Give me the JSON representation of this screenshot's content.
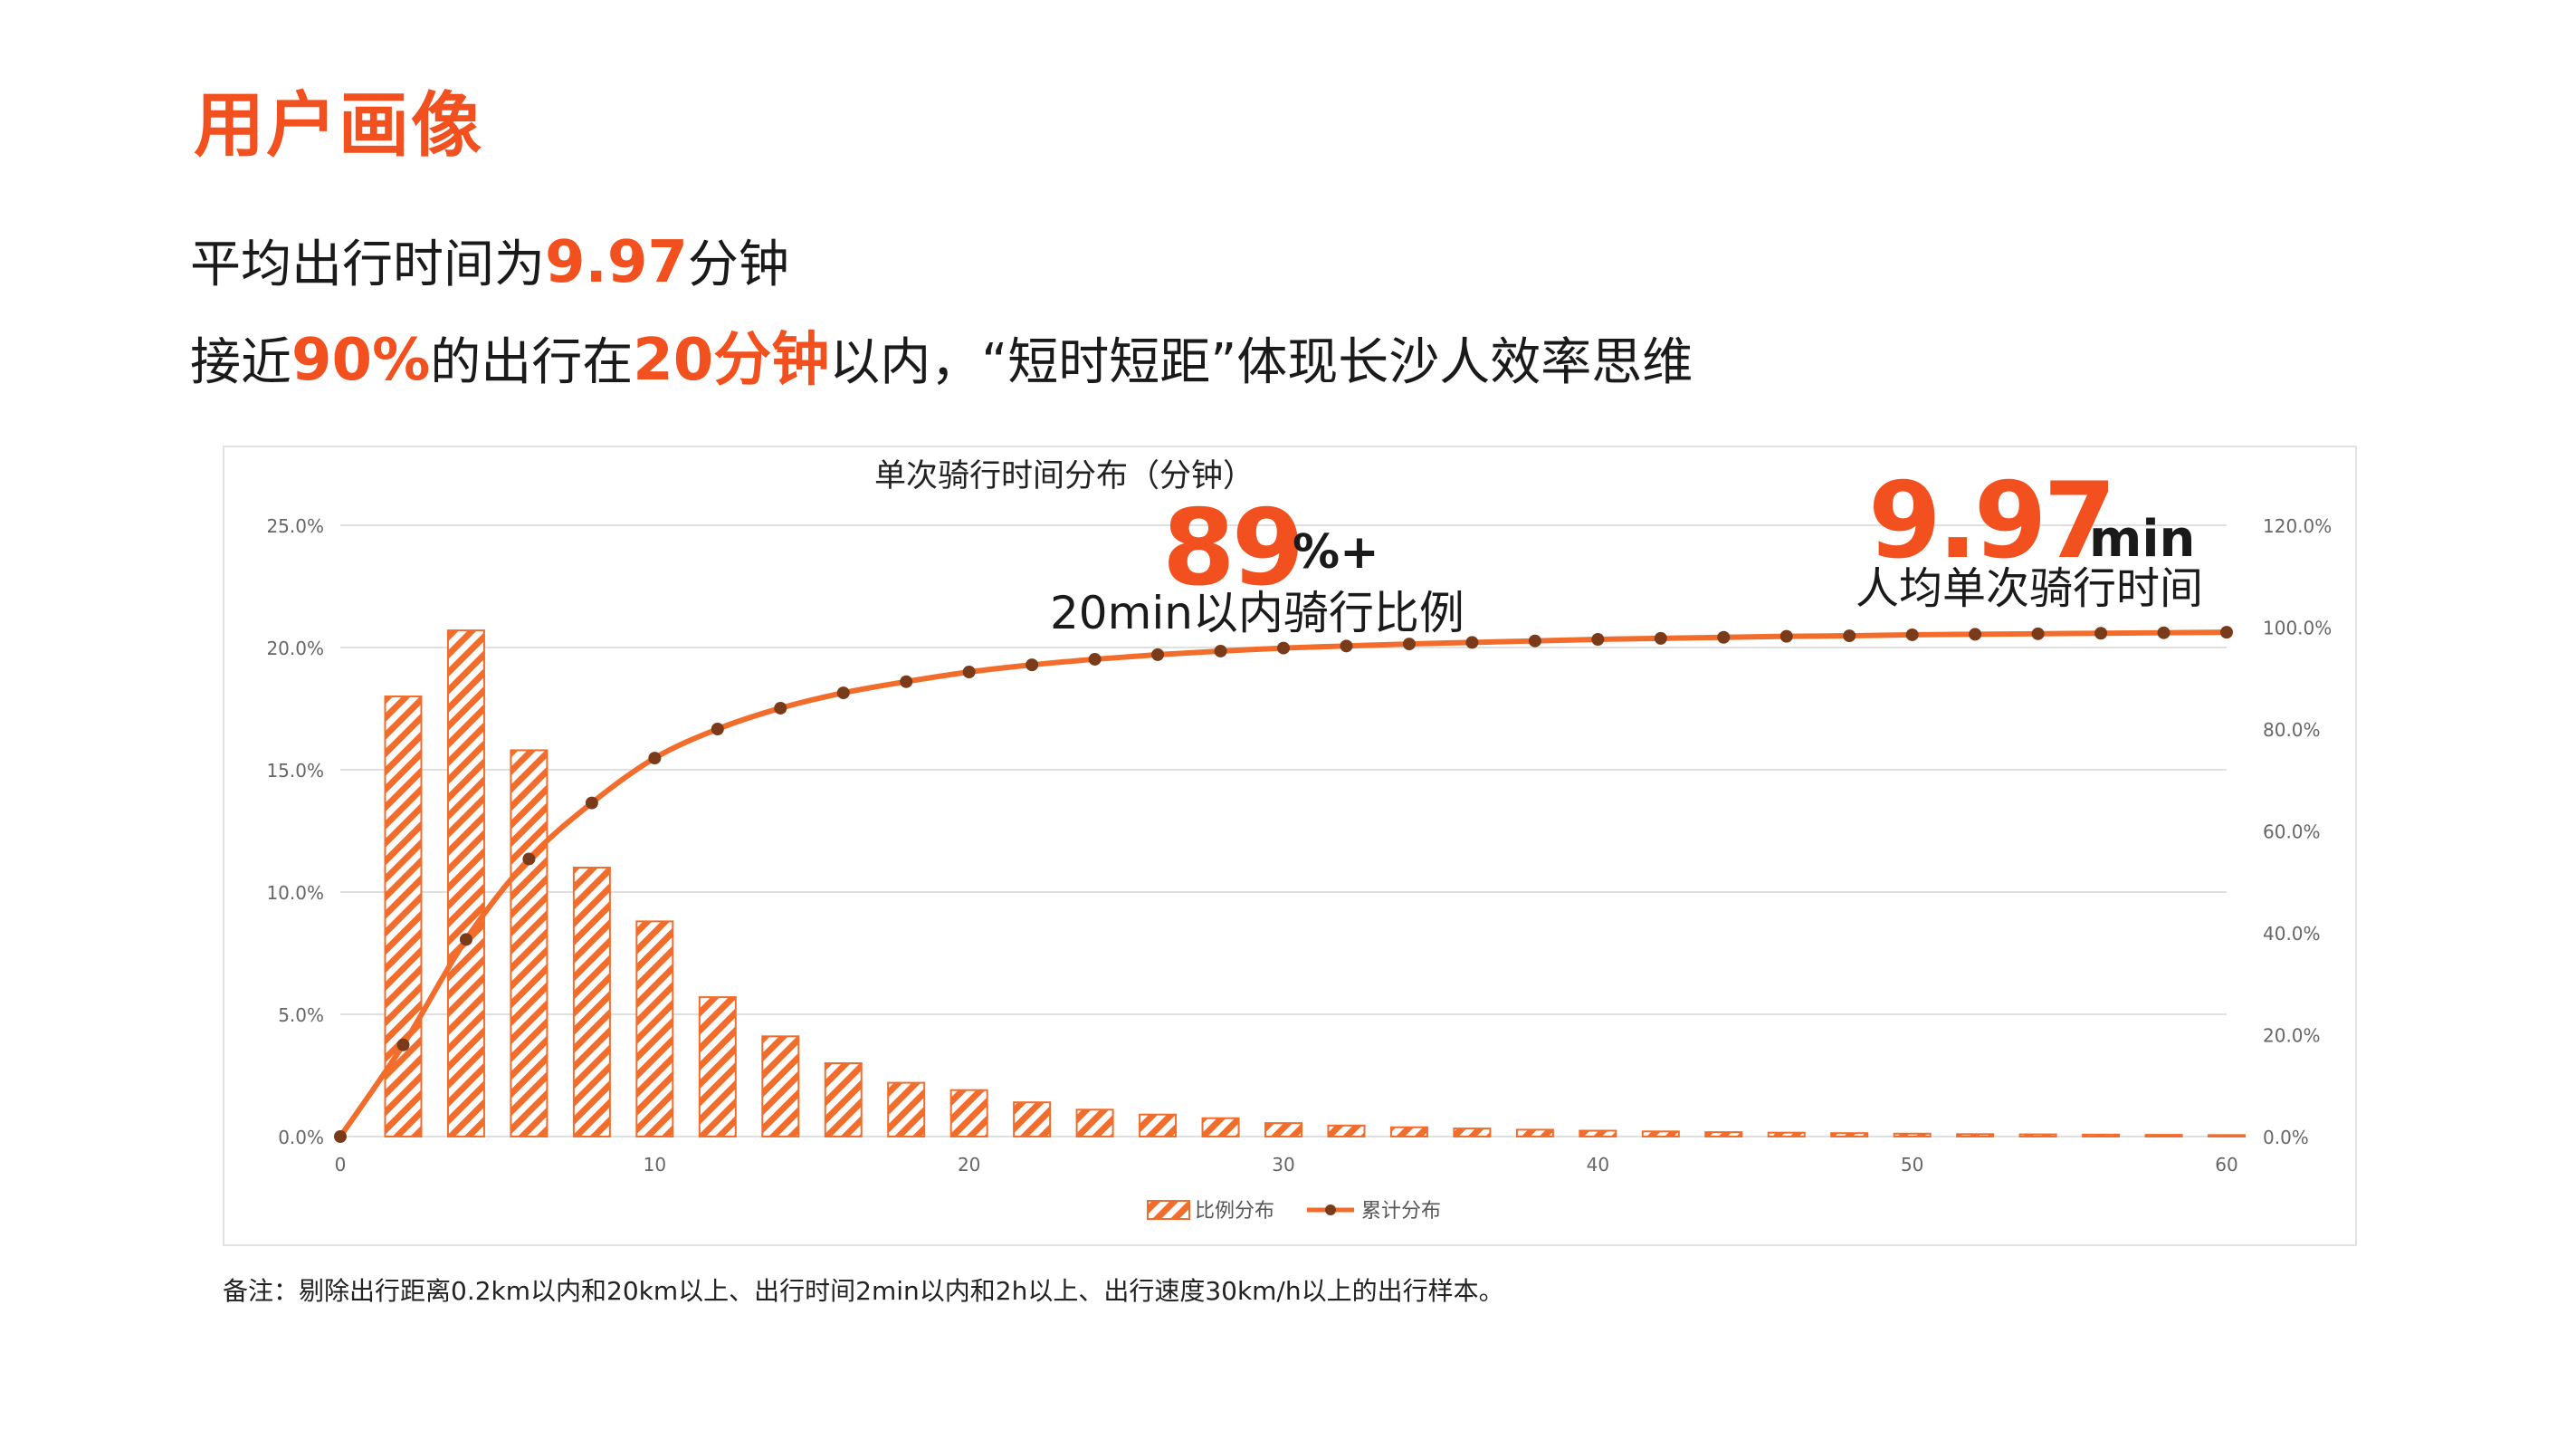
{
  "header": {
    "title": "用户画像",
    "line1": {
      "pre": "平均出行时间为",
      "hl": "9.97",
      "post": "分钟"
    },
    "line2": {
      "a": "接近",
      "b": "90%",
      "c": "的出行在",
      "d": "20分钟",
      "e": "以内，“短时短距”体现长沙人效率思维"
    }
  },
  "annotations": {
    "big1": "89",
    "big1_suffix": "%+",
    "sub1": "20min以内骑行比例",
    "big2": "9.97",
    "big2_suffix": "min",
    "sub2": "人均单次骑行时间"
  },
  "chart_data": {
    "type": "bar+line",
    "title": "单次骑行时间分布（分钟）",
    "x_ticks": [
      0,
      10,
      20,
      30,
      40,
      50,
      60
    ],
    "xlim": [
      0,
      60
    ],
    "y_left": {
      "ticks": [
        "0.0%",
        "5.0%",
        "10.0%",
        "15.0%",
        "20.0%",
        "25.0%"
      ],
      "lim": [
        0,
        25
      ]
    },
    "y_right": {
      "ticks": [
        "0.0%",
        "20.0%",
        "40.0%",
        "60.0%",
        "80.0%",
        "100.0%",
        "120.0%"
      ],
      "lim": [
        0,
        120
      ]
    },
    "grid": true,
    "legend_position": "bottom",
    "series": [
      {
        "name": "比例分布",
        "kind": "bar",
        "axis": "left",
        "color": "#f26c2b",
        "x": [
          2,
          4,
          6,
          8,
          10,
          12,
          14,
          16,
          18,
          20,
          22,
          24,
          26,
          28,
          30,
          32,
          34,
          36,
          38,
          40,
          42,
          44,
          46,
          48,
          50,
          52,
          54,
          56,
          58,
          60
        ],
        "values": [
          18.0,
          20.7,
          15.8,
          11.0,
          8.8,
          5.7,
          4.1,
          3.0,
          2.2,
          1.9,
          1.4,
          1.1,
          0.9,
          0.75,
          0.55,
          0.45,
          0.38,
          0.33,
          0.28,
          0.24,
          0.21,
          0.18,
          0.16,
          0.14,
          0.12,
          0.1,
          0.09,
          0.08,
          0.07,
          0.06
        ]
      },
      {
        "name": "累计分布",
        "kind": "line",
        "axis": "right",
        "color": "#f26c2b",
        "marker_color": "#7a3b1a",
        "x": [
          0,
          2,
          4,
          6,
          8,
          10,
          12,
          14,
          16,
          18,
          20,
          22,
          24,
          26,
          28,
          30,
          32,
          34,
          36,
          38,
          40,
          42,
          44,
          46,
          48,
          50,
          52,
          54,
          56,
          58,
          60
        ],
        "values": [
          0,
          18,
          38.7,
          54.5,
          65.5,
          74.3,
          80.0,
          84.1,
          87.1,
          89.3,
          91.2,
          92.6,
          93.7,
          94.6,
          95.3,
          95.9,
          96.3,
          96.7,
          97.0,
          97.3,
          97.6,
          97.8,
          98.0,
          98.2,
          98.3,
          98.5,
          98.6,
          98.7,
          98.8,
          98.9,
          99.0
        ]
      }
    ]
  },
  "footnote": "备注：剔除出行距离0.2km以内和20km以上、出行时间2min以内和2h以上、出行速度30km/h以上的出行样本。"
}
